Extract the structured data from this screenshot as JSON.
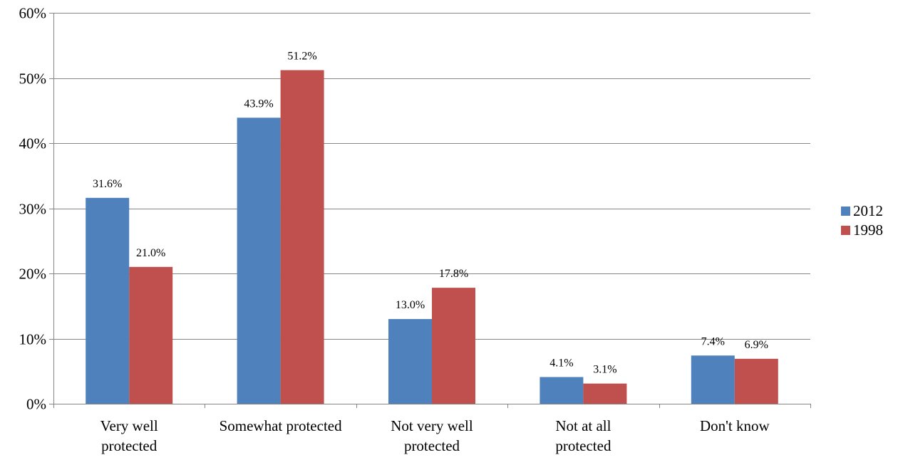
{
  "chart_data": {
    "type": "bar",
    "title": "",
    "xlabel": "",
    "ylabel": "",
    "categories": [
      "Very well protected",
      "Somewhat protected",
      "Not very well protected",
      "Not at all protected",
      "Don't know"
    ],
    "series": [
      {
        "name": "2012",
        "color": "#4F81BD",
        "values": [
          31.6,
          43.9,
          13.0,
          4.1,
          7.4
        ],
        "labels": [
          "31.6%",
          "43.9%",
          "13.0%",
          "4.1%",
          "7.4%"
        ]
      },
      {
        "name": "1998",
        "color": "#C0504D",
        "values": [
          21.0,
          51.2,
          17.8,
          3.1,
          6.9
        ],
        "labels": [
          "21.0%",
          "51.2%",
          "17.8%",
          "3.1%",
          "6.9%"
        ]
      }
    ],
    "ylim": [
      0,
      60
    ],
    "yticks": [
      0,
      10,
      20,
      30,
      40,
      50,
      60
    ],
    "ytick_labels": [
      "0%",
      "10%",
      "20%",
      "30%",
      "40%",
      "50%",
      "60%"
    ],
    "grid": true,
    "legend_position": "right"
  }
}
